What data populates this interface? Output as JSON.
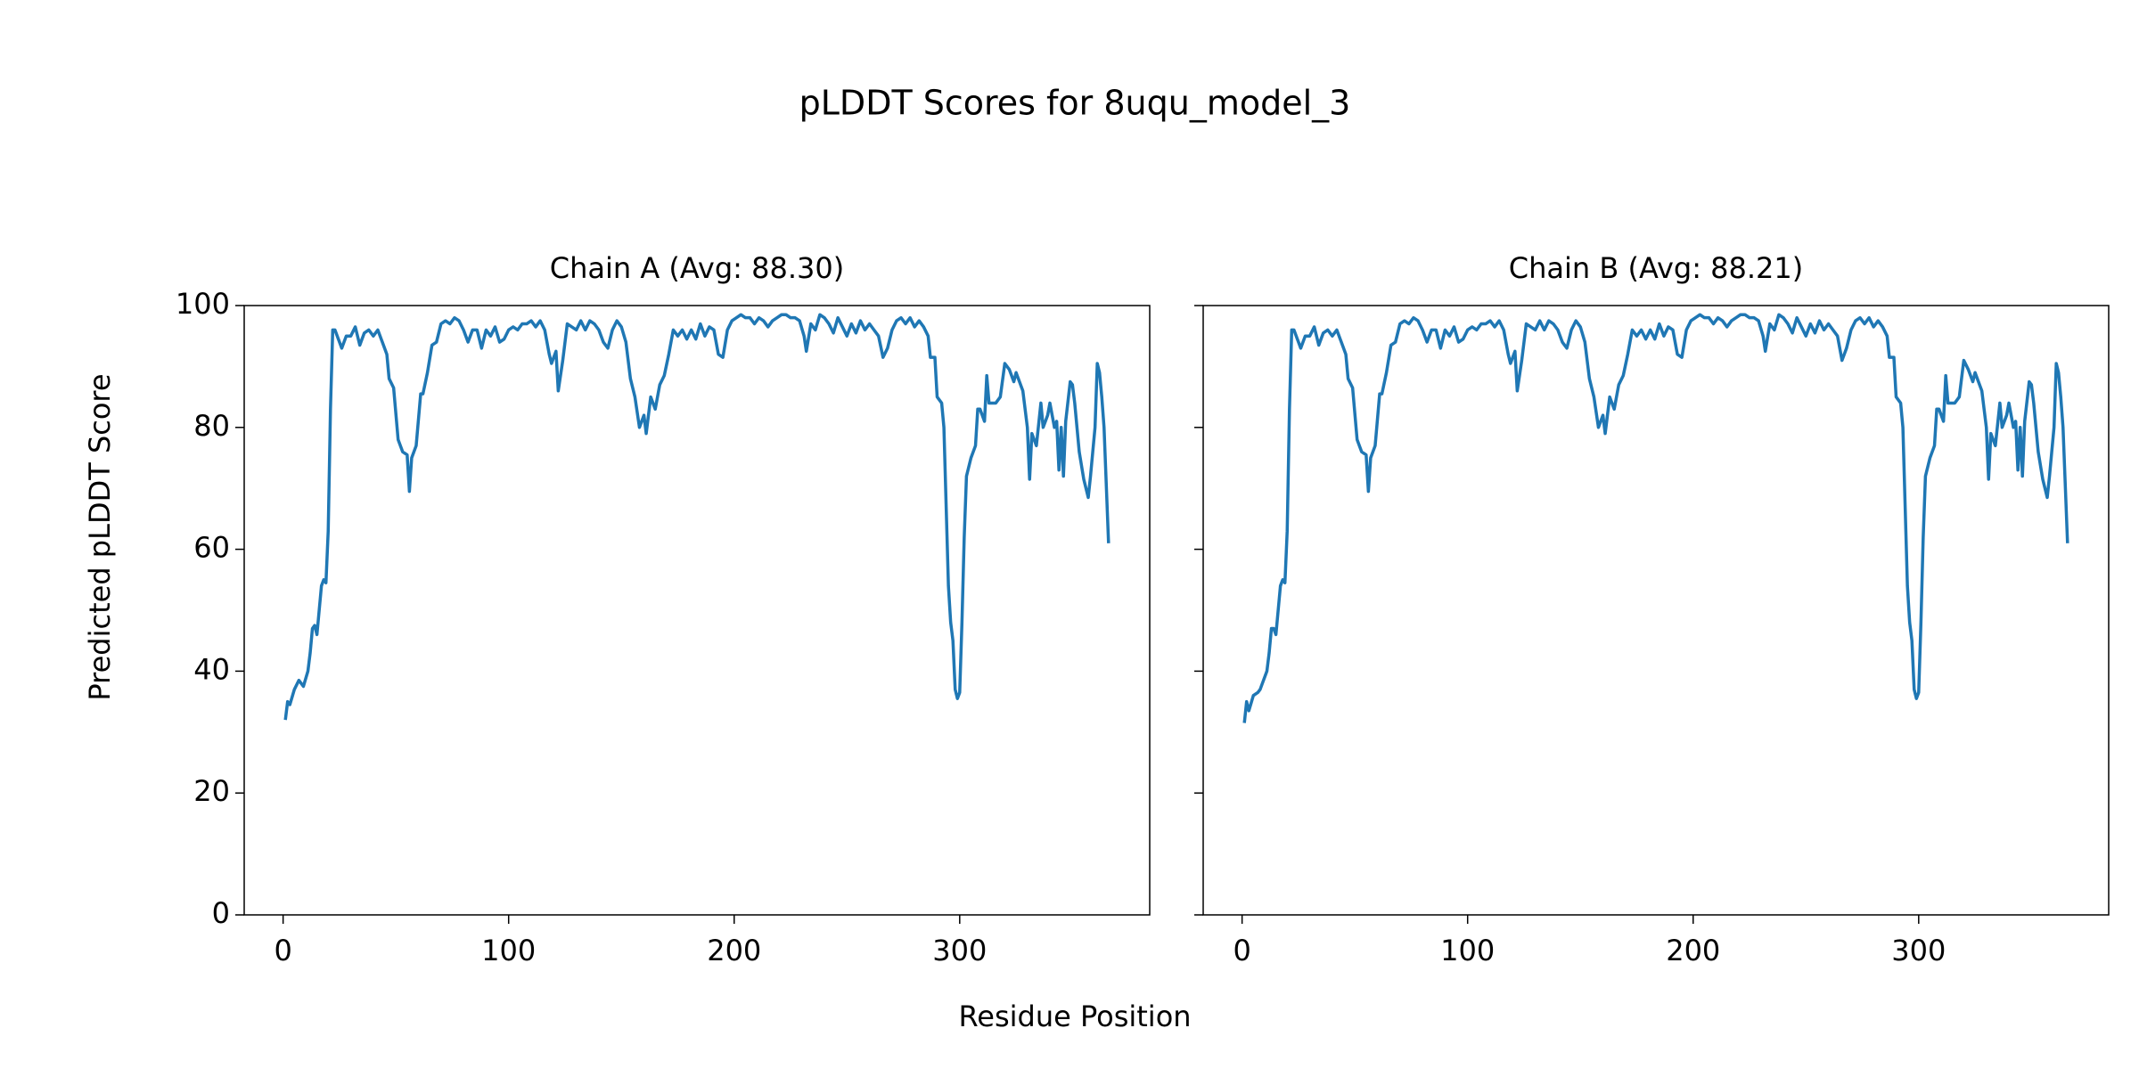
{
  "title": "pLDDT Scores for 8uqu_model_3",
  "xlabel": "Residue Position",
  "ylabel": "Predicted pLDDT Score",
  "chart_data": [
    {
      "type": "line",
      "title": "Chain A (Avg: 88.30)",
      "color": "#1f77b4",
      "xlim": [
        -17.25,
        384.25
      ],
      "ylim": [
        0,
        100
      ],
      "xticks": [
        0,
        100,
        200,
        300
      ],
      "yticks": [
        0,
        20,
        40,
        60,
        80,
        100
      ],
      "x": [
        1,
        2,
        3,
        5,
        7,
        8,
        9,
        11,
        12,
        13,
        14,
        15,
        16,
        17,
        18,
        19,
        20,
        21,
        22,
        23,
        25,
        26,
        28,
        30,
        32,
        34,
        36,
        38,
        40,
        42,
        44,
        46,
        47,
        49,
        51,
        53,
        55,
        56,
        57,
        59,
        61,
        62,
        64,
        66,
        68,
        70,
        72,
        74,
        76,
        78,
        80,
        82,
        84,
        86,
        88,
        90,
        92,
        94,
        96,
        98,
        100,
        102,
        104,
        106,
        108,
        110,
        112,
        114,
        116,
        118,
        119,
        121,
        122,
        124,
        126,
        128,
        130,
        132,
        134,
        136,
        138,
        140,
        142,
        144,
        146,
        148,
        150,
        152,
        154,
        156,
        158,
        160,
        161,
        163,
        165,
        167,
        169,
        171,
        173,
        175,
        177,
        179,
        181,
        183,
        185,
        187,
        189,
        191,
        193,
        195,
        197,
        199,
        201,
        203,
        205,
        207,
        209,
        211,
        213,
        215,
        217,
        219,
        221,
        223,
        225,
        227,
        229,
        231,
        232,
        234,
        236,
        238,
        240,
        242,
        244,
        246,
        248,
        250,
        252,
        254,
        256,
        258,
        260,
        262,
        264,
        266,
        268,
        270,
        272,
        274,
        276,
        278,
        280,
        282,
        284,
        286,
        287,
        289,
        290,
        292,
        293,
        295,
        296,
        297,
        298,
        299,
        300,
        301,
        302,
        303,
        305,
        307,
        308,
        309,
        311,
        312,
        313,
        316,
        318,
        320,
        322,
        324,
        325,
        328,
        330,
        331,
        332,
        334,
        336,
        337,
        339,
        340,
        342,
        343,
        344,
        345,
        346,
        347,
        349,
        350,
        351,
        353,
        355,
        357,
        358,
        360,
        361,
        362,
        363,
        364,
        366
      ],
      "values": [
        32,
        35,
        34.5,
        37,
        38.5,
        38,
        37.5,
        40,
        43,
        47,
        47.5,
        46,
        50,
        54,
        55,
        54.5,
        63,
        83,
        96,
        96,
        94,
        93,
        95,
        95,
        96.5,
        93.5,
        95.5,
        96,
        95,
        96,
        94,
        92,
        88,
        86.5,
        78,
        76,
        75.5,
        69.5,
        75,
        77,
        85.5,
        85.5,
        89,
        93.5,
        94,
        97,
        97.5,
        97,
        98,
        97.5,
        96,
        94,
        96,
        96,
        93,
        96,
        95,
        96.5,
        94,
        94.5,
        96,
        96.5,
        96,
        97,
        97,
        97.5,
        96.5,
        97.5,
        96,
        92,
        90.5,
        92.5,
        86,
        91,
        97,
        96.5,
        96,
        97.5,
        96,
        97.5,
        97,
        96,
        94,
        93,
        96,
        97.5,
        96.5,
        94,
        88,
        85,
        80,
        82,
        79,
        85,
        83,
        87,
        88.5,
        92,
        96,
        95,
        96,
        94.5,
        96,
        94.5,
        97,
        95,
        96.5,
        96,
        92,
        91.5,
        96,
        97.5,
        98,
        98.5,
        98,
        98,
        97,
        98,
        97.5,
        96.5,
        97.5,
        98,
        98.5,
        98.5,
        98,
        98,
        97.5,
        95,
        92.5,
        97,
        96,
        98.5,
        98,
        97,
        95.5,
        98,
        96.5,
        95,
        97,
        95.5,
        97.5,
        96,
        97,
        96,
        95,
        91.5,
        93,
        96,
        97.5,
        98,
        97,
        98,
        96.5,
        97.5,
        96.5,
        95,
        91.5,
        91.5,
        85,
        84,
        80,
        54,
        48,
        45,
        37,
        35.5,
        36.5,
        48,
        62,
        72,
        75,
        77,
        83,
        83,
        81,
        88.5,
        84,
        84,
        85,
        90.5,
        89.5,
        87.5,
        89,
        86,
        80,
        71.5,
        79,
        77,
        84,
        80,
        82,
        84,
        80,
        81,
        73,
        80,
        72,
        81,
        87.5,
        87,
        84,
        76,
        71.5,
        68.5,
        72,
        80,
        90.5,
        89,
        85,
        80,
        61
      ]
    },
    {
      "type": "line",
      "title": "Chain B (Avg: 88.21)",
      "color": "#1f77b4",
      "xlim": [
        -17.25,
        384.25
      ],
      "ylim": [
        0,
        100
      ],
      "xticks": [
        0,
        100,
        200,
        300
      ],
      "yticks": [
        0,
        20,
        40,
        60,
        80,
        100
      ],
      "ytick_labels": false,
      "x": [
        1,
        2,
        3,
        5,
        7,
        8,
        9,
        11,
        12,
        13,
        14,
        15,
        16,
        17,
        18,
        19,
        20,
        21,
        22,
        23,
        25,
        26,
        28,
        30,
        32,
        34,
        36,
        38,
        40,
        42,
        44,
        46,
        47,
        49,
        51,
        53,
        55,
        56,
        57,
        59,
        61,
        62,
        64,
        66,
        68,
        70,
        72,
        74,
        76,
        78,
        80,
        82,
        84,
        86,
        88,
        90,
        92,
        94,
        96,
        98,
        100,
        102,
        104,
        106,
        108,
        110,
        112,
        114,
        116,
        118,
        119,
        121,
        122,
        124,
        126,
        128,
        130,
        132,
        134,
        136,
        138,
        140,
        142,
        144,
        146,
        148,
        150,
        152,
        154,
        156,
        158,
        160,
        161,
        163,
        165,
        167,
        169,
        171,
        173,
        175,
        177,
        179,
        181,
        183,
        185,
        187,
        189,
        191,
        193,
        195,
        197,
        199,
        201,
        203,
        205,
        207,
        209,
        211,
        213,
        215,
        217,
        219,
        221,
        223,
        225,
        227,
        229,
        231,
        232,
        234,
        236,
        238,
        240,
        242,
        244,
        246,
        248,
        250,
        252,
        254,
        256,
        258,
        260,
        262,
        264,
        266,
        268,
        270,
        272,
        274,
        276,
        278,
        280,
        282,
        284,
        286,
        287,
        289,
        290,
        292,
        293,
        295,
        296,
        297,
        298,
        299,
        300,
        301,
        302,
        303,
        305,
        307,
        308,
        309,
        311,
        312,
        313,
        316,
        318,
        320,
        322,
        324,
        325,
        328,
        330,
        331,
        332,
        334,
        336,
        337,
        339,
        340,
        342,
        343,
        344,
        345,
        346,
        347,
        349,
        350,
        351,
        353,
        355,
        357,
        358,
        360,
        361,
        362,
        363,
        364,
        366
      ],
      "values": [
        31.5,
        35,
        33.5,
        36,
        36.5,
        37,
        38,
        40,
        43,
        47,
        47,
        46,
        50,
        54,
        55,
        54.5,
        63,
        83,
        96,
        96,
        94,
        93,
        95,
        95,
        96.5,
        93.5,
        95.5,
        96,
        95,
        96,
        94,
        92,
        88,
        86.5,
        78,
        76,
        75.5,
        69.5,
        75,
        77,
        85.5,
        85.5,
        89,
        93.5,
        94,
        97,
        97.5,
        97,
        98,
        97.5,
        96,
        94,
        96,
        96,
        93,
        96,
        95,
        96.5,
        94,
        94.5,
        96,
        96.5,
        96,
        97,
        97,
        97.5,
        96.5,
        97.5,
        96,
        92,
        90.5,
        92.5,
        86,
        91,
        97,
        96.5,
        96,
        97.5,
        96,
        97.5,
        97,
        96,
        94,
        93,
        96,
        97.5,
        96.5,
        94,
        88,
        85,
        80,
        82,
        79,
        85,
        83,
        87,
        88.5,
        92,
        96,
        95,
        96,
        94.5,
        96,
        94.5,
        97,
        95,
        96.5,
        96,
        92,
        91.5,
        96,
        97.5,
        98,
        98.5,
        98,
        98,
        97,
        98,
        97.5,
        96.5,
        97.5,
        98,
        98.5,
        98.5,
        98,
        98,
        97.5,
        95,
        92.5,
        97,
        96,
        98.5,
        98,
        97,
        95.5,
        98,
        96.5,
        95,
        97,
        95.5,
        97.5,
        96,
        97,
        96,
        95,
        91,
        93,
        96,
        97.5,
        98,
        97,
        98,
        96.5,
        97.5,
        96.5,
        95,
        91.5,
        91.5,
        85,
        84,
        80,
        54,
        48,
        45,
        37,
        35.5,
        36.5,
        48,
        62,
        72,
        75,
        77,
        83,
        83,
        81,
        88.5,
        84,
        84,
        85,
        91,
        89.5,
        87.5,
        89,
        86,
        80,
        71.5,
        79,
        77,
        84,
        80,
        82,
        84,
        80,
        81,
        73,
        80,
        72,
        81,
        87.5,
        87,
        84,
        76,
        71.5,
        68.5,
        72,
        80,
        90.5,
        89,
        85,
        80,
        61
      ]
    }
  ]
}
